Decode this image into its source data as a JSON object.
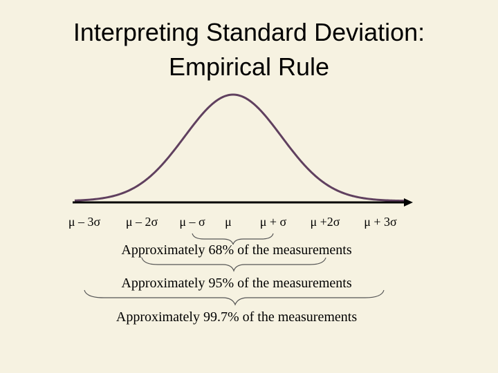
{
  "slide": {
    "title_line1": "Interpreting Standard Deviation:",
    "title_line2": "Empirical Rule"
  },
  "axis": {
    "tick_labels": [
      "μ – 3σ",
      "μ – 2σ",
      "μ – σ",
      "μ",
      "μ + σ",
      "μ +2σ",
      "μ + 3σ"
    ]
  },
  "ranges": [
    {
      "label": "Approximately 68% of the measurements",
      "sigma": 1
    },
    {
      "label": "Approximately 95% of the measurements",
      "sigma": 2
    },
    {
      "label": "Approximately 99.7% of the measurements",
      "sigma": 3
    }
  ],
  "colors": {
    "background": "#f6f2e1",
    "curve": "#60405f",
    "axis": "#000000",
    "brace": "#555555"
  }
}
